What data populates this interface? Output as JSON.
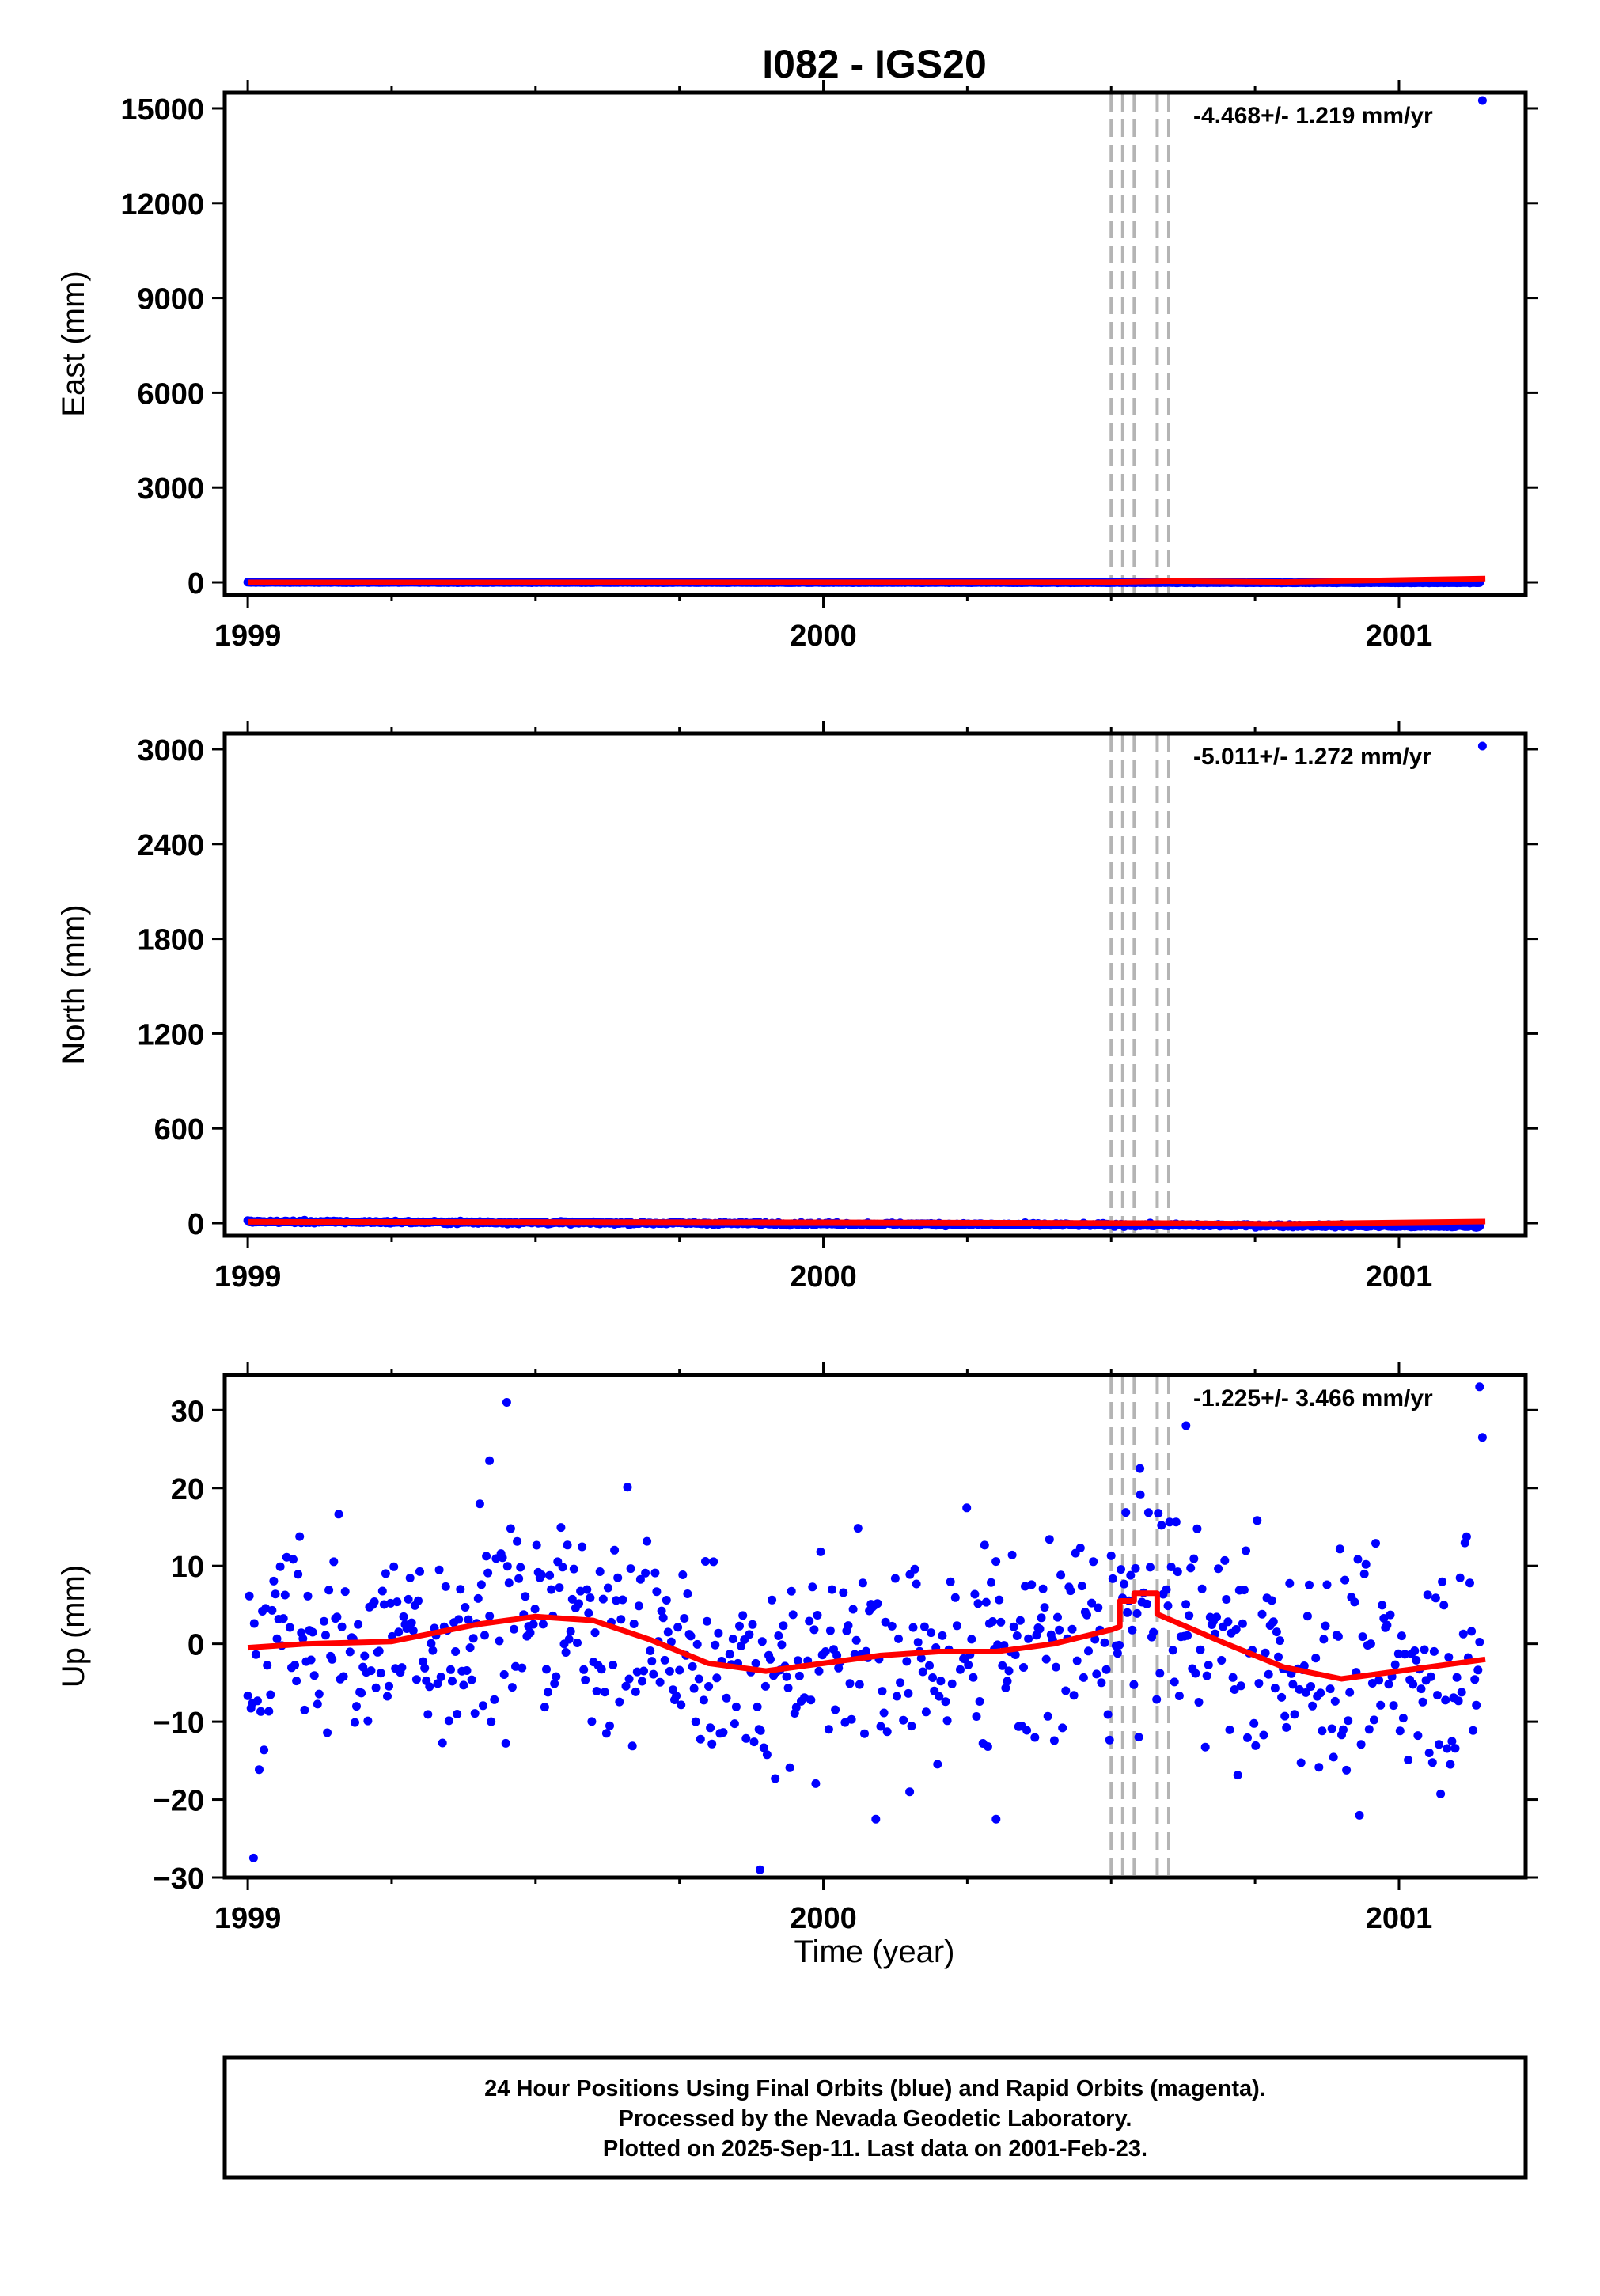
{
  "title": "I082 - IGS20",
  "x_axis_label": "Time (year)",
  "caption": [
    "24 Hour Positions Using Final Orbits (blue) and Rapid Orbits (magenta).",
    "Processed by the Nevada Geodetic Laboratory.",
    "Plotted on 2025-Sep-11. Last data on 2001-Feb-23."
  ],
  "colors": {
    "data": "#0000ff",
    "model": "#ff0000",
    "steps": "#b4b4b4",
    "frame": "#000000"
  },
  "chart_data": [
    {
      "type": "scatter",
      "ylabel": "East (mm)",
      "rate_text": "-4.468+/- 1.219 mm/yr",
      "xlim": [
        1998.96,
        2001.22
      ],
      "ylim": [
        -400,
        15500
      ],
      "xticks": [
        1999,
        2000,
        2001
      ],
      "yticks": [
        0,
        3000,
        6000,
        9000,
        12000,
        15000
      ],
      "steps": [
        2000.5,
        2000.52,
        2000.54,
        2000.58,
        2000.6
      ],
      "data_start": 1999.0,
      "data_end": 2001.14,
      "trend_start": 0,
      "trend_end": -9,
      "model": [
        [
          1999.0,
          0
        ],
        [
          2000.5,
          5
        ],
        [
          2000.6,
          40
        ],
        [
          2000.8,
          10
        ],
        [
          2001.15,
          120
        ]
      ],
      "outliers": [
        [
          2001.145,
          15250
        ]
      ]
    },
    {
      "type": "scatter",
      "ylabel": "North (mm)",
      "rate_text": "-5.011+/- 1.272 mm/yr",
      "xlim": [
        1998.96,
        2001.22
      ],
      "ylim": [
        -80,
        3100
      ],
      "xticks": [
        1999,
        2000,
        2001
      ],
      "yticks": [
        0,
        600,
        1200,
        1800,
        2400,
        3000
      ],
      "steps": [
        2000.5,
        2000.52,
        2000.54,
        2000.58,
        2000.6
      ],
      "data_start": 1999.0,
      "data_end": 2001.14,
      "trend_start": 10,
      "trend_end": -20,
      "model": [
        [
          1999.0,
          8
        ],
        [
          2000.0,
          5
        ],
        [
          2000.6,
          0
        ],
        [
          2000.8,
          -5
        ],
        [
          2001.15,
          10
        ]
      ],
      "outliers": [
        [
          2001.145,
          3020
        ]
      ]
    },
    {
      "type": "scatter",
      "ylabel": "Up (mm)",
      "rate_text": "-1.225+/- 3.466 mm/yr",
      "xlim": [
        1998.96,
        2001.22
      ],
      "ylim": [
        -30,
        34.5
      ],
      "xticks": [
        1999,
        2000,
        2001
      ],
      "yticks": [
        -30,
        -20,
        -10,
        0,
        10,
        20,
        30
      ],
      "steps": [
        2000.5,
        2000.52,
        2000.54,
        2000.58,
        2000.6
      ],
      "data_start": 1999.0,
      "data_end": 2001.14,
      "scatter_sd": 7,
      "model": [
        [
          1999.0,
          -0.5
        ],
        [
          1999.1,
          0
        ],
        [
          1999.25,
          0.3
        ],
        [
          1999.4,
          2.5
        ],
        [
          1999.5,
          3.5
        ],
        [
          1999.6,
          3
        ],
        [
          1999.7,
          0.5
        ],
        [
          1999.8,
          -2.5
        ],
        [
          1999.9,
          -3.5
        ],
        [
          2000.0,
          -2.5
        ],
        [
          2000.1,
          -1.5
        ],
        [
          2000.2,
          -1
        ],
        [
          2000.3,
          -1
        ],
        [
          2000.4,
          0
        ],
        [
          2000.5,
          1.8
        ],
        [
          2000.515,
          2.2
        ],
        [
          2000.515,
          5.5
        ],
        [
          2000.54,
          5.5
        ],
        [
          2000.54,
          6.5
        ],
        [
          2000.58,
          6.5
        ],
        [
          2000.58,
          3.8
        ],
        [
          2000.7,
          0
        ],
        [
          2000.8,
          -3
        ],
        [
          2000.9,
          -4.5
        ],
        [
          2001.0,
          -3.5
        ],
        [
          2001.15,
          -2
        ]
      ],
      "outliers": [
        [
          1999.01,
          -27.5
        ],
        [
          1999.45,
          31
        ],
        [
          1999.42,
          23.5
        ],
        [
          1999.89,
          -29
        ],
        [
          2000.63,
          28
        ],
        [
          2000.55,
          22.5
        ],
        [
          2001.14,
          33
        ],
        [
          2001.145,
          26.5
        ],
        [
          2000.15,
          -19
        ],
        [
          2000.3,
          -22.5
        ]
      ]
    }
  ]
}
